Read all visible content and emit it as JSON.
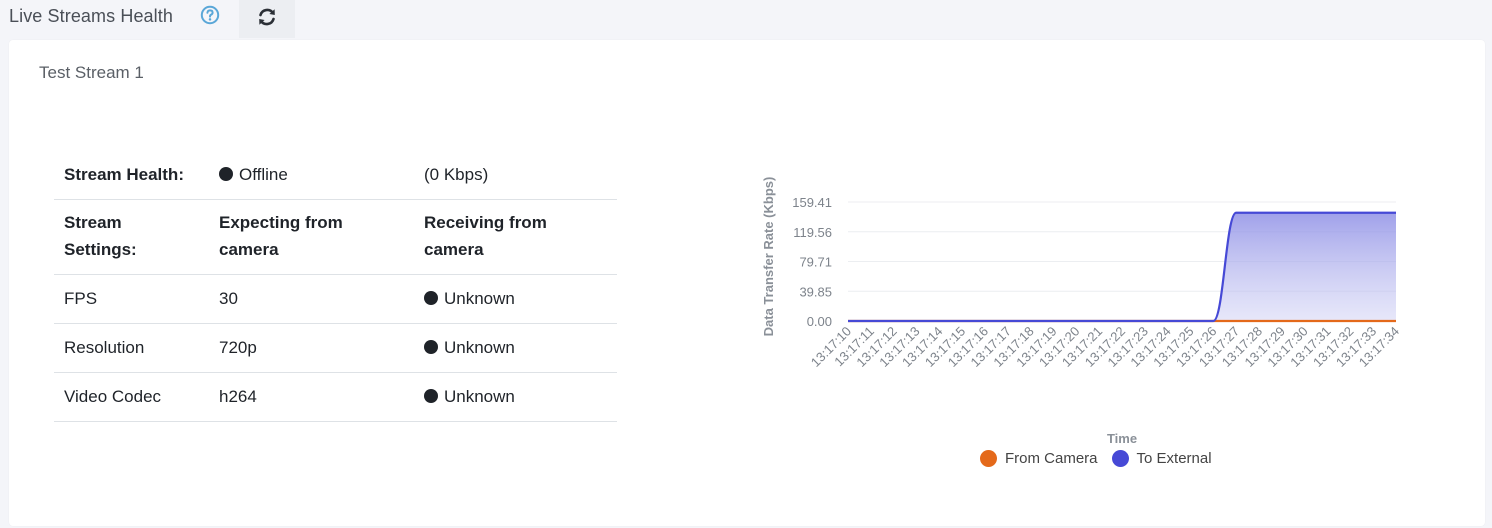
{
  "header": {
    "title": "Live Streams Health",
    "help_icon": "question-circle-icon",
    "refresh_icon": "refresh-icon",
    "accent_color": "#5aa7d8"
  },
  "stream": {
    "name": "Test Stream 1",
    "health_label": "Stream Health:",
    "health_status": "Offline",
    "health_rate": "(0 Kbps)",
    "settings_label": "Stream Settings:",
    "expecting_label": "Expecting from camera",
    "receiving_label": "Receiving from camera",
    "rows": [
      {
        "setting": "FPS",
        "expected": "30",
        "received": "Unknown"
      },
      {
        "setting": "Resolution",
        "expected": "720p",
        "received": "Unknown"
      },
      {
        "setting": "Video Codec",
        "expected": "h264",
        "received": "Unknown"
      }
    ]
  },
  "chart_data": {
    "type": "area",
    "ylabel": "Data Transfer Rate (Kbps)",
    "xlabel": "Time",
    "x": [
      "13:17:10",
      "13:17:11",
      "13:17:12",
      "13:17:13",
      "13:17:14",
      "13:17:15",
      "13:17:16",
      "13:17:17",
      "13:17:18",
      "13:17:19",
      "13:17:20",
      "13:17:21",
      "13:17:22",
      "13:17:23",
      "13:17:24",
      "13:17:25",
      "13:17:26",
      "13:17:27",
      "13:17:28",
      "13:17:29",
      "13:17:30",
      "13:17:31",
      "13:17:32",
      "13:17:33",
      "13:17:34"
    ],
    "yticks": [
      "0.00",
      "39.85",
      "79.71",
      "119.56",
      "159.41"
    ],
    "ylim": [
      0,
      159.41
    ],
    "series": [
      {
        "name": "From Camera",
        "color": "#e4691a",
        "values": [
          0,
          0,
          0,
          0,
          0,
          0,
          0,
          0,
          0,
          0,
          0,
          0,
          0,
          0,
          0,
          0,
          0,
          0,
          0,
          0,
          0,
          0,
          0,
          0,
          0
        ]
      },
      {
        "name": "To External",
        "color": "#4649d6",
        "values": [
          0,
          0,
          0,
          0,
          0,
          0,
          0,
          0,
          0,
          0,
          0,
          0,
          0,
          0,
          0,
          0,
          0,
          145,
          145,
          145,
          145,
          145,
          145,
          145,
          145
        ]
      }
    ],
    "grid": true,
    "legend_position": "bottom"
  }
}
